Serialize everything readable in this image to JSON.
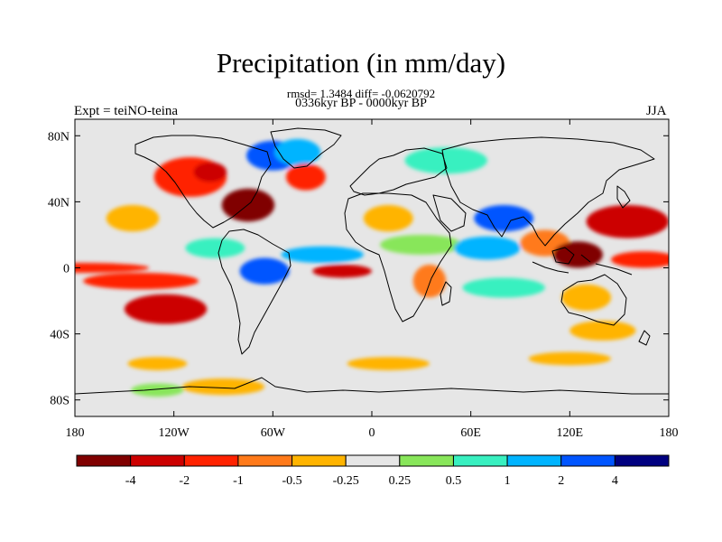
{
  "title": "Precipitation (in mm/day)",
  "stats": "rmsd= 1.3484 diff= -0.0620792",
  "period": "0336kyr BP - 0000kyr BP",
  "left_label": "Expt = teiNO-teina",
  "right_label": "JJA",
  "chart_data": {
    "type": "heatmap",
    "projection": "cylindrical-equidistant",
    "xlim": [
      -180,
      180
    ],
    "ylim": [
      -90,
      90
    ],
    "x_ticks": [
      {
        "value": -180,
        "label": "180"
      },
      {
        "value": -120,
        "label": "120W"
      },
      {
        "value": -60,
        "label": "60W"
      },
      {
        "value": 0,
        "label": "0"
      },
      {
        "value": 60,
        "label": "60E"
      },
      {
        "value": 120,
        "label": "120E"
      },
      {
        "value": 180,
        "label": "180"
      }
    ],
    "y_ticks": [
      {
        "value": 80,
        "label": "80N"
      },
      {
        "value": 40,
        "label": "40N"
      },
      {
        "value": 0,
        "label": "0"
      },
      {
        "value": -40,
        "label": "40S"
      },
      {
        "value": -80,
        "label": "80S"
      }
    ],
    "background_color": "#e6e6e6",
    "levels": [
      -4,
      -2,
      -1,
      -0.5,
      -0.25,
      0.25,
      0.5,
      1,
      2,
      4
    ],
    "level_labels": [
      "-4",
      "-2",
      "-1",
      "-0.5",
      "-0.25",
      "0.25",
      "0.5",
      "1",
      "2",
      "4"
    ],
    "colors": [
      "#800000",
      "#cc0000",
      "#ff2200",
      "#ff7a1a",
      "#ffb400",
      "#e6e6e6",
      "#88e65a",
      "#38f0c0",
      "#00b4ff",
      "#0055ff",
      "#000080"
    ],
    "regions": [
      {
        "lon": -145,
        "lat": 30,
        "rx": 16,
        "ry": 8,
        "bin": 4
      },
      {
        "lon": -110,
        "lat": 55,
        "rx": 22,
        "ry": 12,
        "bin": 2
      },
      {
        "lon": -98,
        "lat": 58,
        "rx": 10,
        "ry": 6,
        "bin": 1
      },
      {
        "lon": -75,
        "lat": 38,
        "rx": 16,
        "ry": 10,
        "bin": 0
      },
      {
        "lon": -60,
        "lat": 68,
        "rx": 16,
        "ry": 9,
        "bin": 9
      },
      {
        "lon": -45,
        "lat": 70,
        "rx": 14,
        "ry": 8,
        "bin": 8
      },
      {
        "lon": -40,
        "lat": 55,
        "rx": 12,
        "ry": 8,
        "bin": 2
      },
      {
        "lon": -175,
        "lat": 0,
        "rx": 40,
        "ry": 3,
        "bin": 2
      },
      {
        "lon": -140,
        "lat": -8,
        "rx": 35,
        "ry": 5,
        "bin": 2
      },
      {
        "lon": -125,
        "lat": -25,
        "rx": 25,
        "ry": 9,
        "bin": 1
      },
      {
        "lon": -95,
        "lat": 12,
        "rx": 18,
        "ry": 6,
        "bin": 7
      },
      {
        "lon": -65,
        "lat": -2,
        "rx": 15,
        "ry": 8,
        "bin": 9
      },
      {
        "lon": -30,
        "lat": 8,
        "rx": 25,
        "ry": 5,
        "bin": 8
      },
      {
        "lon": -18,
        "lat": -2,
        "rx": 18,
        "ry": 4,
        "bin": 1
      },
      {
        "lon": 10,
        "lat": 30,
        "rx": 15,
        "ry": 8,
        "bin": 4
      },
      {
        "lon": 30,
        "lat": 14,
        "rx": 25,
        "ry": 6,
        "bin": 6
      },
      {
        "lon": 35,
        "lat": -8,
        "rx": 10,
        "ry": 10,
        "bin": 3
      },
      {
        "lon": 45,
        "lat": 65,
        "rx": 25,
        "ry": 8,
        "bin": 7
      },
      {
        "lon": 80,
        "lat": 30,
        "rx": 18,
        "ry": 8,
        "bin": 9
      },
      {
        "lon": 70,
        "lat": 12,
        "rx": 20,
        "ry": 7,
        "bin": 8
      },
      {
        "lon": 105,
        "lat": 15,
        "rx": 15,
        "ry": 8,
        "bin": 3
      },
      {
        "lon": 125,
        "lat": 8,
        "rx": 15,
        "ry": 8,
        "bin": 0
      },
      {
        "lon": 155,
        "lat": 28,
        "rx": 25,
        "ry": 10,
        "bin": 1
      },
      {
        "lon": 165,
        "lat": 5,
        "rx": 20,
        "ry": 5,
        "bin": 2
      },
      {
        "lon": 130,
        "lat": -18,
        "rx": 15,
        "ry": 8,
        "bin": 4
      },
      {
        "lon": 140,
        "lat": -38,
        "rx": 20,
        "ry": 6,
        "bin": 4
      },
      {
        "lon": 80,
        "lat": -12,
        "rx": 25,
        "ry": 6,
        "bin": 7
      },
      {
        "lon": 10,
        "lat": -58,
        "rx": 25,
        "ry": 4,
        "bin": 4
      },
      {
        "lon": -130,
        "lat": -58,
        "rx": 18,
        "ry": 4,
        "bin": 4
      },
      {
        "lon": -90,
        "lat": -72,
        "rx": 25,
        "ry": 5,
        "bin": 4
      },
      {
        "lon": -130,
        "lat": -74,
        "rx": 16,
        "ry": 4,
        "bin": 6
      },
      {
        "lon": 120,
        "lat": -55,
        "rx": 25,
        "ry": 4,
        "bin": 4
      }
    ]
  }
}
